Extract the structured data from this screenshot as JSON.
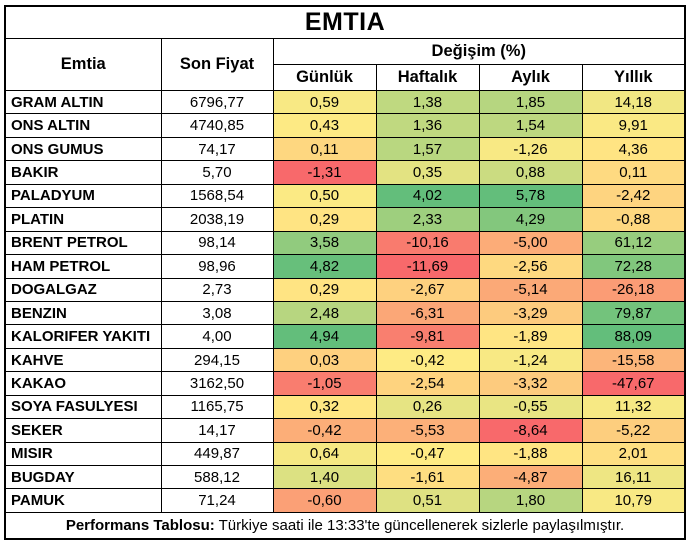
{
  "title": "EMTIA",
  "header": {
    "commodity": "Emtia",
    "last_price": "Son Fiyat",
    "change_pct": "Değişim (%)",
    "periods": [
      "Günlük",
      "Haftalık",
      "Aylık",
      "Yıllık"
    ]
  },
  "rows": [
    {
      "name": "GRAM ALTIN",
      "price": "6796,77",
      "changes": [
        "0,59",
        "1,38",
        "1,85",
        "14,18"
      ]
    },
    {
      "name": "ONS ALTIN",
      "price": "4740,85",
      "changes": [
        "0,43",
        "1,36",
        "1,54",
        "9,91"
      ]
    },
    {
      "name": "ONS GUMUS",
      "price": "74,17",
      "changes": [
        "0,11",
        "1,57",
        "-1,26",
        "4,36"
      ]
    },
    {
      "name": "BAKIR",
      "price": "5,70",
      "changes": [
        "-1,31",
        "0,35",
        "0,88",
        "0,11"
      ]
    },
    {
      "name": "PALADYUM",
      "price": "1568,54",
      "changes": [
        "0,50",
        "4,02",
        "5,78",
        "-2,42"
      ]
    },
    {
      "name": "PLATIN",
      "price": "2038,19",
      "changes": [
        "0,29",
        "2,33",
        "4,29",
        "-0,88"
      ]
    },
    {
      "name": "BRENT PETROL",
      "price": "98,14",
      "changes": [
        "3,58",
        "-10,16",
        "-5,00",
        "61,12"
      ]
    },
    {
      "name": "HAM PETROL",
      "price": "98,96",
      "changes": [
        "4,82",
        "-11,69",
        "-2,56",
        "72,28"
      ]
    },
    {
      "name": "DOGALGAZ",
      "price": "2,73",
      "changes": [
        "0,29",
        "-2,67",
        "-5,14",
        "-26,18"
      ]
    },
    {
      "name": "BENZIN",
      "price": "3,08",
      "changes": [
        "2,48",
        "-6,31",
        "-3,29",
        "79,87"
      ]
    },
    {
      "name": "KALORIFER YAKITI",
      "price": "4,00",
      "changes": [
        "4,94",
        "-9,81",
        "-1,89",
        "88,09"
      ]
    },
    {
      "name": "KAHVE",
      "price": "294,15",
      "changes": [
        "0,03",
        "-0,42",
        "-1,24",
        "-15,58"
      ]
    },
    {
      "name": "KAKAO",
      "price": "3162,50",
      "changes": [
        "-1,05",
        "-2,54",
        "-3,32",
        "-47,67"
      ]
    },
    {
      "name": "SOYA FASULYESI",
      "price": "1165,75",
      "changes": [
        "0,32",
        "0,26",
        "-0,55",
        "11,32"
      ]
    },
    {
      "name": "SEKER",
      "price": "14,17",
      "changes": [
        "-0,42",
        "-5,53",
        "-8,64",
        "-5,22"
      ]
    },
    {
      "name": "MISIR",
      "price": "449,87",
      "changes": [
        "0,64",
        "-0,47",
        "-1,88",
        "2,01"
      ]
    },
    {
      "name": "BUGDAY",
      "price": "588,12",
      "changes": [
        "1,40",
        "-1,61",
        "-4,87",
        "16,11"
      ]
    },
    {
      "name": "PAMUK",
      "price": "71,24",
      "changes": [
        "-0,60",
        "0,51",
        "1,80",
        "10,79"
      ]
    }
  ],
  "footer": {
    "label": "Performans Tablosu:",
    "text": " Türkiye saati ile 13:33'te güncellenerek sizlerle paylaşılmıştır."
  },
  "colors": {
    "scale_min": "#F8696B",
    "scale_mid": "#FFEB84",
    "scale_max": "#63BE7B",
    "border": "#000000",
    "background": "#FFFFFF"
  },
  "chart_data": {
    "type": "table",
    "title": "EMTIA",
    "columns": [
      "Emtia",
      "Son Fiyat",
      "Günlük",
      "Haftalık",
      "Aylık",
      "Yıllık"
    ],
    "color_scale": "per-column red-yellow-green (min / median / max)"
  }
}
